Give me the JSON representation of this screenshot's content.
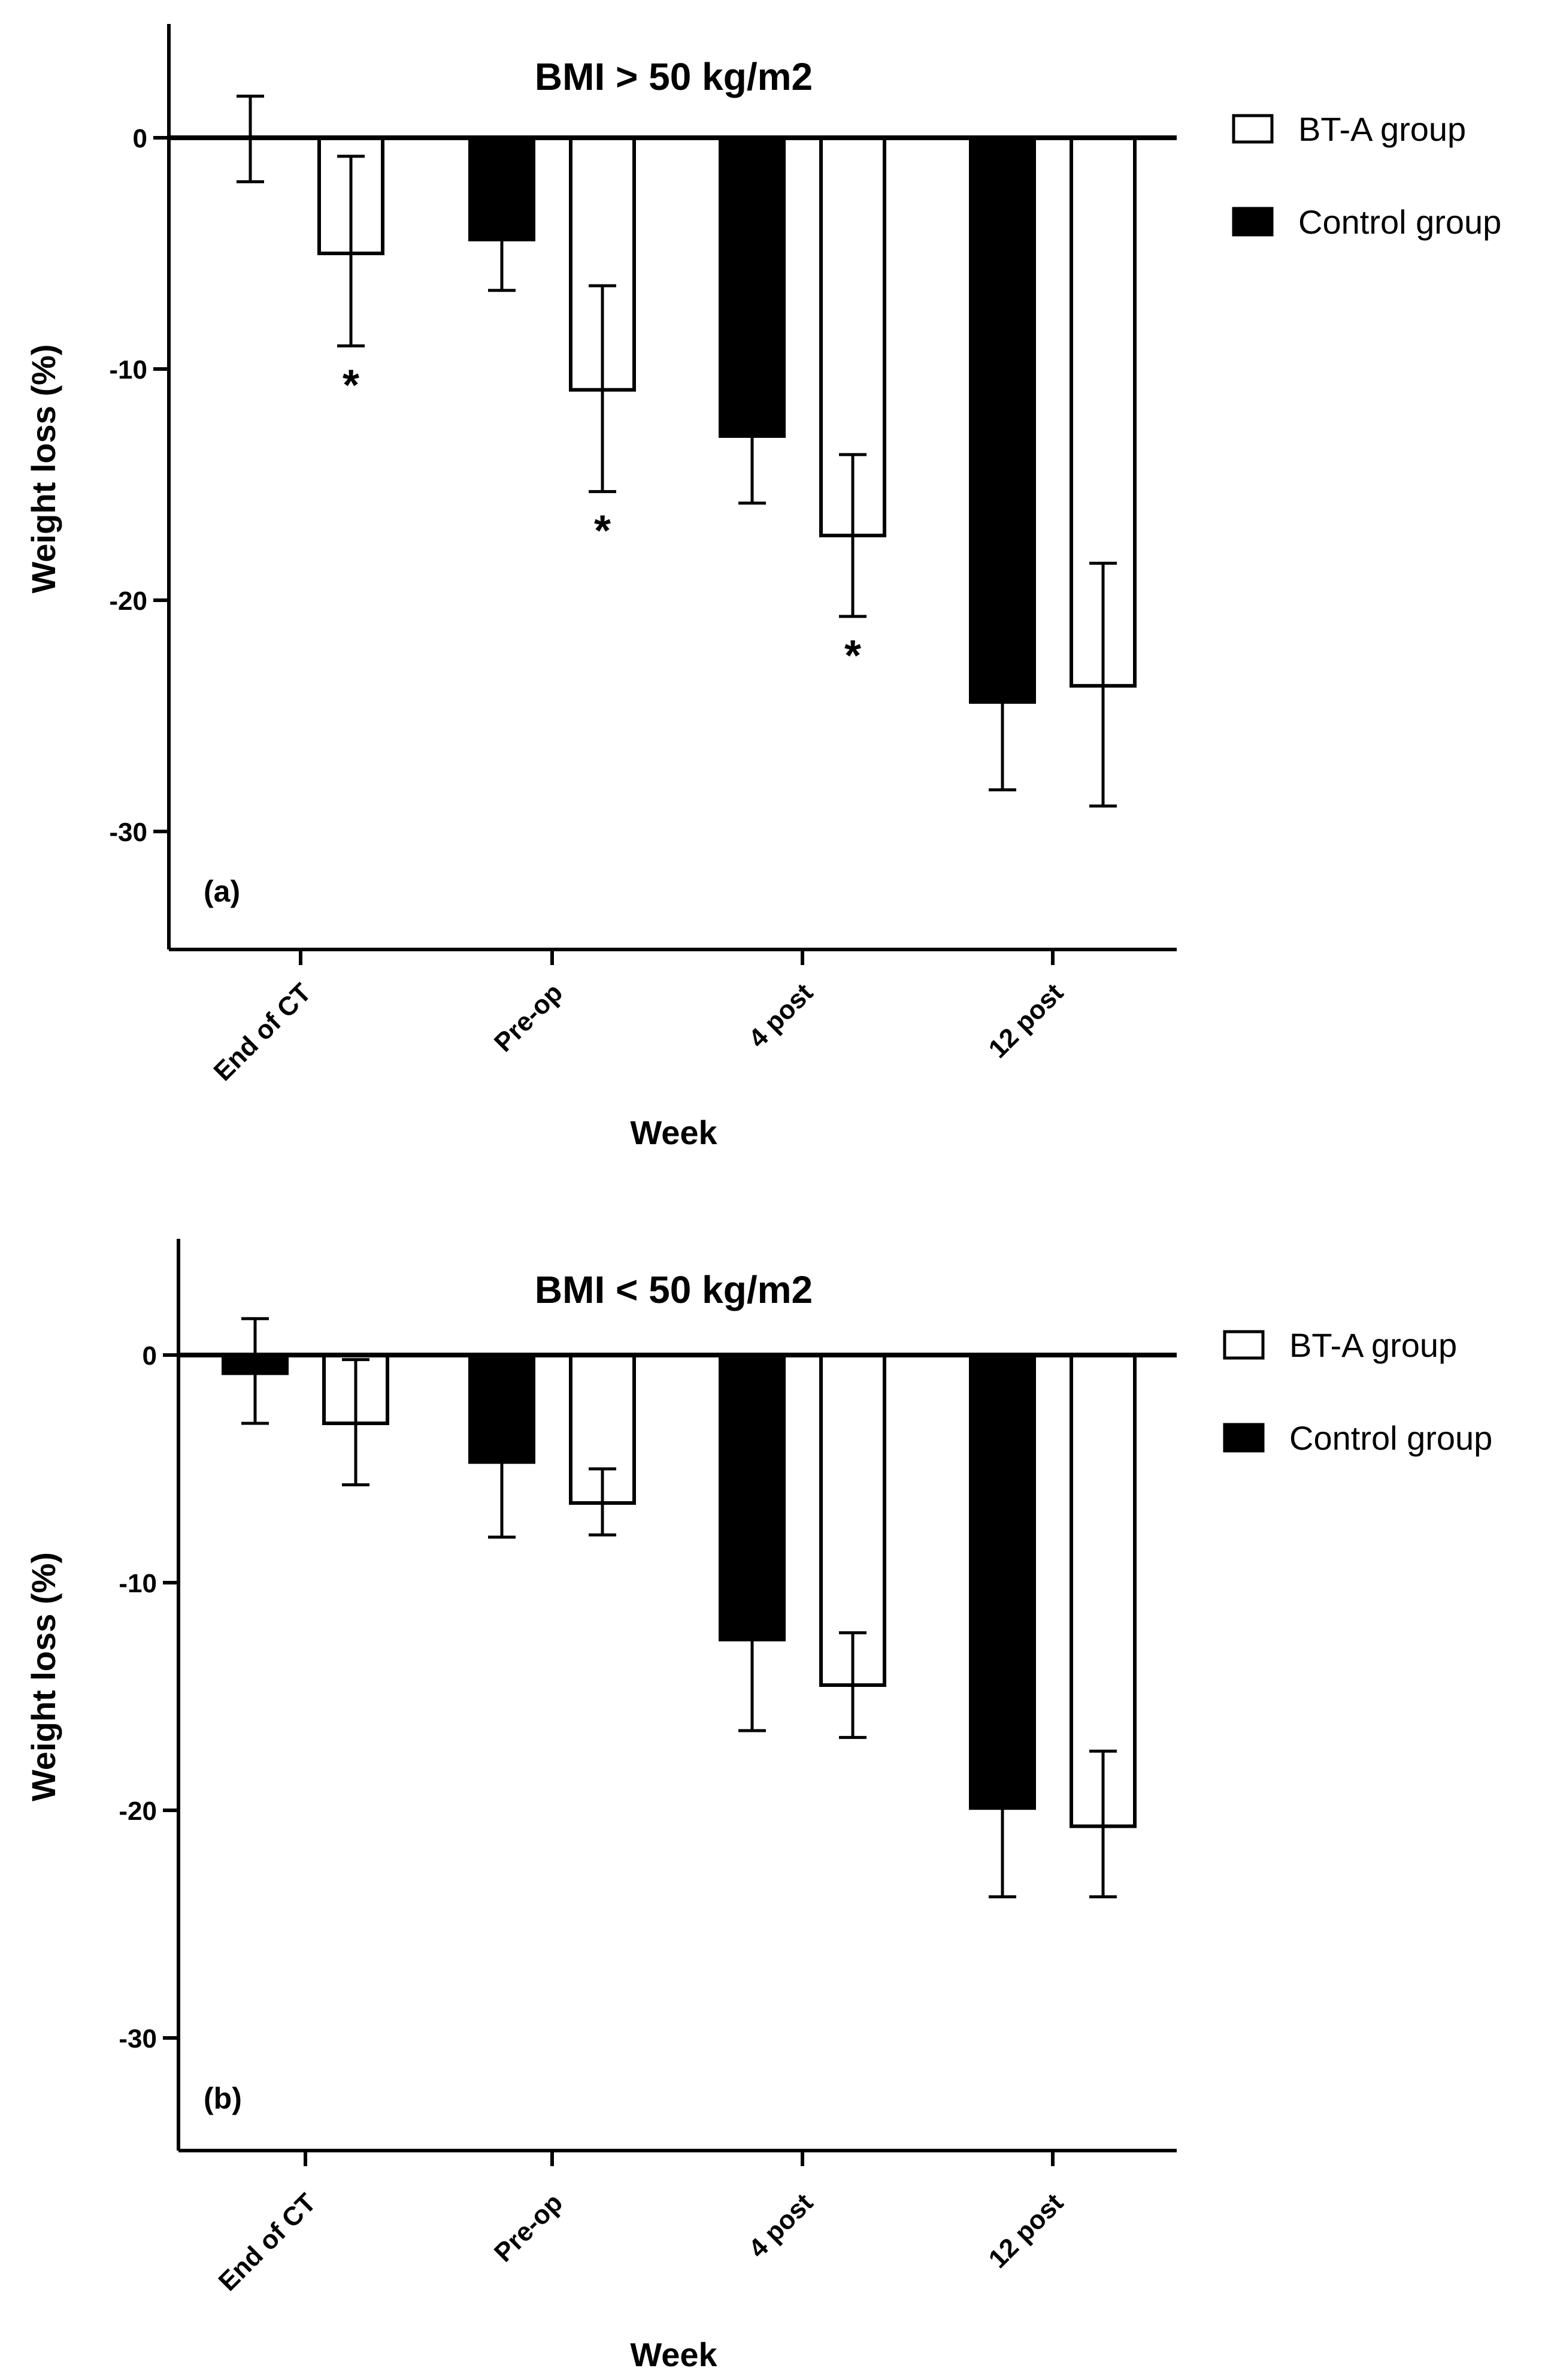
{
  "chart_data": [
    {
      "type": "bar",
      "panel_label": "(a)",
      "title": "BMI > 50 kg/m2",
      "xlabel": "Week",
      "ylabel": "Weight loss (%)",
      "ylim": [
        -35,
        5
      ],
      "yticks": [
        0,
        -10,
        -20,
        -30
      ],
      "categories": [
        "End of CT",
        "Pre-op",
        "4 post",
        "12 post"
      ],
      "legend_position": "top-right",
      "series": [
        {
          "name": "Control group",
          "fill": "#000000",
          "values": [
            0,
            -4.4,
            -12.9,
            -24.4
          ],
          "err_low": [
            -1.9,
            -6.6,
            -15.8,
            -28.2
          ],
          "err_high": [
            1.8,
            -4.4,
            -12.9,
            -24.4
          ],
          "significant": [
            false,
            false,
            false,
            false
          ]
        },
        {
          "name": "BT-A group",
          "fill": "#ffffff",
          "values": [
            -5.0,
            -10.9,
            -17.2,
            -23.7
          ],
          "err_low": [
            -9.0,
            -15.3,
            -20.7,
            -28.9
          ],
          "err_high": [
            -0.8,
            -6.4,
            -13.7,
            -18.4
          ],
          "significant": [
            true,
            true,
            true,
            false
          ]
        }
      ]
    },
    {
      "type": "bar",
      "panel_label": "(b)",
      "title": "BMI < 50 kg/m2",
      "xlabel": "Week",
      "ylabel": "Weight loss (%)",
      "ylim": [
        -35,
        5
      ],
      "yticks": [
        0,
        -10,
        -20,
        -30
      ],
      "categories": [
        "End of CT",
        "Pre-op",
        "4 post",
        "12 post"
      ],
      "legend_position": "top-right",
      "series": [
        {
          "name": "Control group",
          "fill": "#000000",
          "values": [
            -0.8,
            -4.7,
            -12.5,
            -19.9
          ],
          "err_low": [
            -3.0,
            -8.0,
            -16.5,
            -23.8
          ],
          "err_high": [
            1.6,
            -4.7,
            -12.5,
            -19.9
          ],
          "significant": [
            false,
            false,
            false,
            false
          ]
        },
        {
          "name": "BT-A group",
          "fill": "#ffffff",
          "values": [
            -3.0,
            -6.5,
            -14.5,
            -20.7
          ],
          "err_low": [
            -5.7,
            -7.9,
            -16.8,
            -23.8
          ],
          "err_high": [
            -0.2,
            -5.0,
            -12.2,
            -17.4
          ],
          "significant": [
            false,
            false,
            false,
            false
          ]
        }
      ]
    }
  ]
}
